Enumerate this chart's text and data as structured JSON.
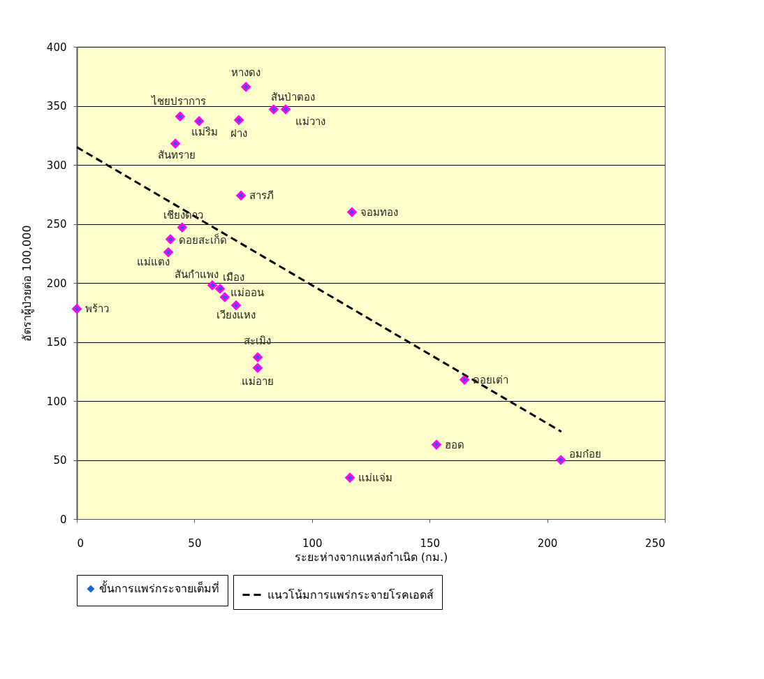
{
  "chart_data": {
    "type": "scatter",
    "xlabel": "ระยะห่างจากแหล่งกำเนิด (กม.)",
    "ylabel": "อัตราผู้ป่วยต่อ 100,000",
    "xlim": [
      0,
      250
    ],
    "xticks": [
      0,
      50,
      100,
      150,
      200,
      250
    ],
    "ylim": [
      0,
      400
    ],
    "yticks": [
      0,
      50,
      100,
      150,
      200,
      250,
      300,
      350,
      400
    ],
    "grid": "y",
    "legend": "bottom",
    "series": [
      {
        "name": "ขั้นการแพร่กระจายเต็มที่",
        "color": "#ff00ff",
        "marker": "diamond",
        "x": [
          71.9,
          83.7,
          88.8,
          43.9,
          52.0,
          68.9,
          41.9,
          69.8,
          44.8,
          39.8,
          38.9,
          57.6,
          60.9,
          62.9,
          67.7,
          0,
          76.9,
          76.9,
          117.0,
          164.8,
          152.9,
          205.8,
          116.1
        ],
        "values": [
          366,
          347,
          347,
          341,
          337,
          338,
          318,
          274,
          247,
          237,
          226,
          198,
          195,
          188,
          181,
          178,
          137,
          128,
          260,
          118,
          63,
          50,
          35
        ]
      },
      {
        "type": "line",
        "name": "แนวโน้มการแพร่กระจายโรคเอดส์",
        "color": "#000000",
        "line_style": "dashed",
        "marker": "none",
        "x": [
          0,
          206
        ],
        "values": [
          315,
          74
        ]
      }
    ],
    "annotations": [
      {
        "text": "หางดง",
        "x": 71.9,
        "y": 366
      },
      {
        "text": "สันป่าตอง",
        "x": 83.7,
        "y": 347
      },
      {
        "text": "แม่วาง",
        "x": 88.8,
        "y": 347
      },
      {
        "text": "ไชยปราการ",
        "x": 43.9,
        "y": 341
      },
      {
        "text": "แม่ริม",
        "x": 52.0,
        "y": 337
      },
      {
        "text": "ฝาง",
        "x": 68.9,
        "y": 338
      },
      {
        "text": "สันทราย",
        "x": 41.9,
        "y": 318
      },
      {
        "text": "สารภี",
        "x": 69.8,
        "y": 274
      },
      {
        "text": "เชียงดาว",
        "x": 44.8,
        "y": 247
      },
      {
        "text": "ดอยสะเก็ด",
        "x": 39.8,
        "y": 237
      },
      {
        "text": "แม่แตง",
        "x": 38.9,
        "y": 226
      },
      {
        "text": "สันกำแพง",
        "x": 57.6,
        "y": 198
      },
      {
        "text": "เมือง",
        "x": 60.9,
        "y": 195
      },
      {
        "text": "แม่ออน",
        "x": 62.9,
        "y": 188
      },
      {
        "text": "เวียงแหง",
        "x": 67.7,
        "y": 181
      },
      {
        "text": "พร้าว",
        "x": 0,
        "y": 178
      },
      {
        "text": "สะเมิง",
        "x": 76.9,
        "y": 137
      },
      {
        "text": "แม่อาย",
        "x": 76.9,
        "y": 128
      },
      {
        "text": "จอมทอง",
        "x": 117.0,
        "y": 260
      },
      {
        "text": "ดอยเต่า",
        "x": 164.8,
        "y": 118
      },
      {
        "text": "ฮอด",
        "x": 152.9,
        "y": 63
      },
      {
        "text": "อมก๋อย",
        "x": 205.8,
        "y": 50
      },
      {
        "text": "แม่แจ่ม",
        "x": 116.1,
        "y": 35
      }
    ]
  }
}
